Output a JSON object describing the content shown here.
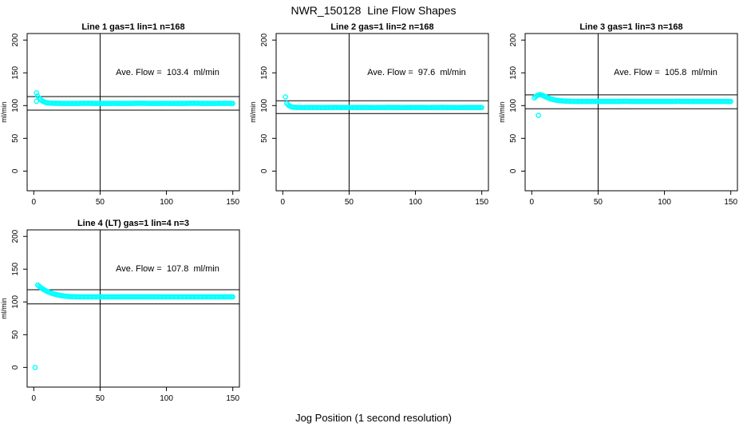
{
  "header": {
    "title": "NWR_150128  Line Flow Shapes"
  },
  "footer": {
    "xlabel": "Jog Position (1 second resolution)"
  },
  "colors": {
    "background": "#FFFFFF",
    "axis": "#000000",
    "marker": "#00FFFF"
  },
  "axes_common": {
    "ylabel": "ml/min",
    "xticks": [
      0,
      50,
      100,
      150
    ],
    "yticks": [
      0,
      50,
      100,
      150,
      200
    ],
    "xlim": [
      -5,
      155
    ],
    "ylim": [
      -30,
      210
    ],
    "vline_x": 50,
    "grid": false
  },
  "chart_data": [
    {
      "type": "scatter",
      "title": "Line 1 gas=1 lin=1 n=168",
      "annotation": "Ave. Flow =  103.4  ml/min",
      "ave_flow": 103.4,
      "n": 168,
      "ref_lines": [
        113.7,
        93.1
      ],
      "profile_points": [
        [
          2,
          119.5
        ],
        [
          3,
          114.6
        ],
        [
          4,
          111.6
        ],
        [
          5,
          109.3
        ],
        [
          6,
          107.6
        ],
        [
          7,
          106.4
        ],
        [
          8,
          105.5
        ],
        [
          9,
          104.8
        ],
        [
          10,
          104.3
        ],
        [
          12,
          103.8
        ],
        [
          14,
          103.6
        ],
        [
          16,
          103.5
        ],
        [
          20,
          103.4
        ],
        [
          30,
          103.3
        ],
        [
          40,
          103.5
        ],
        [
          50,
          103.3
        ],
        [
          60,
          103.4
        ],
        [
          70,
          103.3
        ],
        [
          80,
          103.5
        ],
        [
          90,
          103.3
        ],
        [
          100,
          103.4
        ],
        [
          110,
          103.3
        ],
        [
          120,
          103.5
        ],
        [
          130,
          103.3
        ],
        [
          140,
          103.4
        ],
        [
          150,
          103.4
        ]
      ],
      "outlier_points": [
        [
          2,
          106.5
        ]
      ]
    },
    {
      "type": "scatter",
      "title": "Line 2 gas=1 lin=2 n=168",
      "annotation": "Ave. Flow =  97.6  ml/min",
      "ave_flow": 97.6,
      "n": 168,
      "ref_lines": [
        107.4,
        87.8
      ],
      "profile_points": [
        [
          2,
          113.2
        ],
        [
          3,
          103.5
        ],
        [
          4,
          101.2
        ],
        [
          5,
          99.5
        ],
        [
          6,
          98.5
        ],
        [
          7,
          97.9
        ],
        [
          8,
          97.5
        ],
        [
          10,
          97.2
        ],
        [
          12,
          97.1
        ],
        [
          16,
          97.0
        ],
        [
          20,
          97.1
        ],
        [
          30,
          97.0
        ],
        [
          40,
          97.2
        ],
        [
          50,
          97.0
        ],
        [
          60,
          97.1
        ],
        [
          70,
          97.0
        ],
        [
          80,
          97.2
        ],
        [
          90,
          97.0
        ],
        [
          100,
          97.1
        ],
        [
          110,
          97.0
        ],
        [
          120,
          97.2
        ],
        [
          130,
          97.0
        ],
        [
          140,
          97.1
        ],
        [
          150,
          97.1
        ]
      ],
      "outlier_points": []
    },
    {
      "type": "scatter",
      "title": "Line 3 gas=1 lin=3 n=168",
      "annotation": "Ave. Flow =  105.8  ml/min",
      "ave_flow": 105.8,
      "n": 168,
      "ref_lines": [
        116.4,
        95.2
      ],
      "profile_points": [
        [
          2,
          111.8
        ],
        [
          3,
          113.8
        ],
        [
          4,
          115.3
        ],
        [
          5,
          116.3
        ],
        [
          6,
          116.7
        ],
        [
          7,
          116.4
        ],
        [
          8,
          115.7
        ],
        [
          9,
          114.8
        ],
        [
          10,
          113.9
        ],
        [
          12,
          112.0
        ],
        [
          14,
          110.4
        ],
        [
          16,
          109.2
        ],
        [
          18,
          108.3
        ],
        [
          20,
          107.7
        ],
        [
          22,
          107.3
        ],
        [
          24,
          107.0
        ],
        [
          26,
          106.8
        ],
        [
          28,
          106.6
        ],
        [
          30,
          106.5
        ],
        [
          40,
          106.3
        ],
        [
          50,
          106.4
        ],
        [
          60,
          106.3
        ],
        [
          70,
          106.5
        ],
        [
          80,
          106.3
        ],
        [
          90,
          106.4
        ],
        [
          100,
          106.3
        ],
        [
          110,
          106.5
        ],
        [
          120,
          106.3
        ],
        [
          130,
          106.4
        ],
        [
          140,
          106.3
        ],
        [
          150,
          106.4
        ]
      ],
      "outlier_points": [
        [
          5,
          85
        ]
      ]
    },
    {
      "type": "scatter",
      "title": "Line 4 (LT) gas=1 lin=4 n=3",
      "annotation": "Ave. Flow =  107.8  ml/min",
      "ave_flow": 107.8,
      "n": 3,
      "ref_lines": [
        118.6,
        97.0
      ],
      "profile_points": [
        [
          3,
          125.8
        ],
        [
          4,
          124.0
        ],
        [
          5,
          122.4
        ],
        [
          6,
          120.9
        ],
        [
          7,
          119.5
        ],
        [
          8,
          118.3
        ],
        [
          9,
          117.2
        ],
        [
          10,
          116.2
        ],
        [
          12,
          114.4
        ],
        [
          14,
          112.9
        ],
        [
          16,
          111.7
        ],
        [
          18,
          110.7
        ],
        [
          20,
          109.9
        ],
        [
          22,
          109.3
        ],
        [
          24,
          108.8
        ],
        [
          26,
          108.4
        ],
        [
          28,
          108.1
        ],
        [
          30,
          107.9
        ],
        [
          35,
          107.7
        ],
        [
          40,
          107.8
        ],
        [
          50,
          107.7
        ],
        [
          60,
          107.8
        ],
        [
          70,
          107.7
        ],
        [
          80,
          107.8
        ],
        [
          90,
          107.7
        ],
        [
          100,
          107.8
        ],
        [
          110,
          107.7
        ],
        [
          120,
          107.8
        ],
        [
          130,
          107.7
        ],
        [
          140,
          107.8
        ],
        [
          150,
          107.8
        ]
      ],
      "outlier_points": [
        [
          1,
          0
        ]
      ]
    }
  ]
}
